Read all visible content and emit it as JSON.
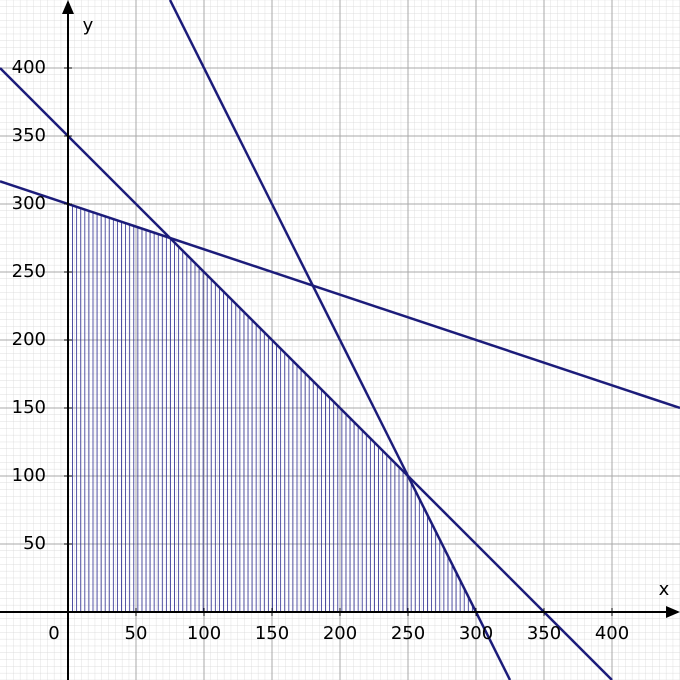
{
  "chart_data": {
    "type": "line",
    "x_label": "x",
    "y_label": "y",
    "xlim": [
      -50,
      450
    ],
    "ylim": [
      -50,
      450
    ],
    "xticks": [
      0,
      50,
      100,
      150,
      200,
      250,
      300,
      350,
      400
    ],
    "yticks": [
      50,
      100,
      150,
      200,
      250,
      300,
      350,
      400
    ],
    "grid": true,
    "color": "#1c1c7a",
    "series": [
      {
        "x": [
          -50,
          450
        ],
        "values": [
          316.7,
          150
        ]
      },
      {
        "x": [
          -50,
          400
        ],
        "values": [
          400,
          -50
        ]
      },
      {
        "x": [
          75,
          325
        ],
        "values": [
          450,
          -50
        ]
      }
    ],
    "region": {
      "x": [
        0,
        0,
        75,
        250,
        300
      ],
      "values": [
        0,
        300,
        275,
        100,
        0
      ]
    }
  }
}
